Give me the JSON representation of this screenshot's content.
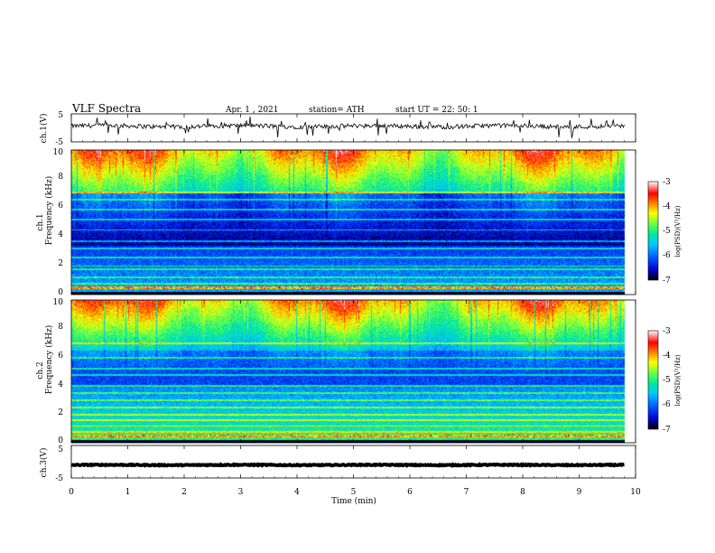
{
  "header": {
    "title": "VLF  Spectra",
    "date": "Apr. 1  , 2021",
    "station": "station= ATH",
    "start": "start  UT  =   22: 50: 1"
  },
  "chart_data": {
    "type": "heatmap",
    "x_axis": {
      "label": "Time  (min)",
      "range": [
        0,
        10
      ],
      "ticks": [
        "0",
        "1",
        "2",
        "3",
        "4",
        "5",
        "6",
        "7",
        "8",
        "9",
        "10"
      ],
      "data_end": 9.8
    },
    "panels": [
      {
        "id": "ch1-waveform",
        "type": "line",
        "ylabel": "ch.1(V)",
        "ylim": [
          -5,
          5
        ],
        "y_ticks": [
          "5",
          "-5"
        ],
        "baseline_v": 0.6,
        "noise_amplitude_v": 0.8
      },
      {
        "id": "ch1-spectrogram",
        "type": "heatmap",
        "ylabel_line1": "ch.1",
        "ylabel_line2": "Frequency  (kHz)",
        "ylim": [
          0,
          10
        ],
        "y_ticks": [
          "0",
          "2",
          "4",
          "6",
          "8",
          "10"
        ],
        "colorbar": {
          "label": "log(PSD)(V²/Hz)",
          "range": [
            -7,
            -3
          ],
          "ticks": [
            "-3",
            "-4",
            "-5",
            "-6",
            "-7"
          ],
          "colors": [
            "#000000",
            "#0000c8",
            "#0050ff",
            "#00c8ff",
            "#00e6a0",
            "#50ff50",
            "#ffff00",
            "#ff8000",
            "#ff0000",
            "#ffffff"
          ]
        }
      },
      {
        "id": "ch2-spectrogram",
        "type": "heatmap",
        "ylabel_line1": "ch.2",
        "ylabel_line2": "Frequency  (kHz)",
        "ylim": [
          0,
          10
        ],
        "y_ticks": [
          "0",
          "2",
          "4",
          "6",
          "8",
          "10"
        ],
        "colorbar": {
          "label": "log(PSD)(V²/Hz)",
          "range": [
            -7,
            -3
          ],
          "ticks": [
            "-3",
            "-4",
            "-5",
            "-6",
            "-7"
          ],
          "colors": [
            "#000000",
            "#0000c8",
            "#0050ff",
            "#00c8ff",
            "#00e6a0",
            "#50ff50",
            "#ffff00",
            "#ff8000",
            "#ff0000",
            "#ffffff"
          ]
        }
      },
      {
        "id": "ch3-waveform",
        "type": "line",
        "ylabel": "ch.3(V)",
        "ylim": [
          -5,
          5
        ],
        "y_ticks": [
          "5",
          "-5"
        ],
        "baseline_v": -1.0,
        "noise_amplitude_v": 0.15
      }
    ]
  }
}
